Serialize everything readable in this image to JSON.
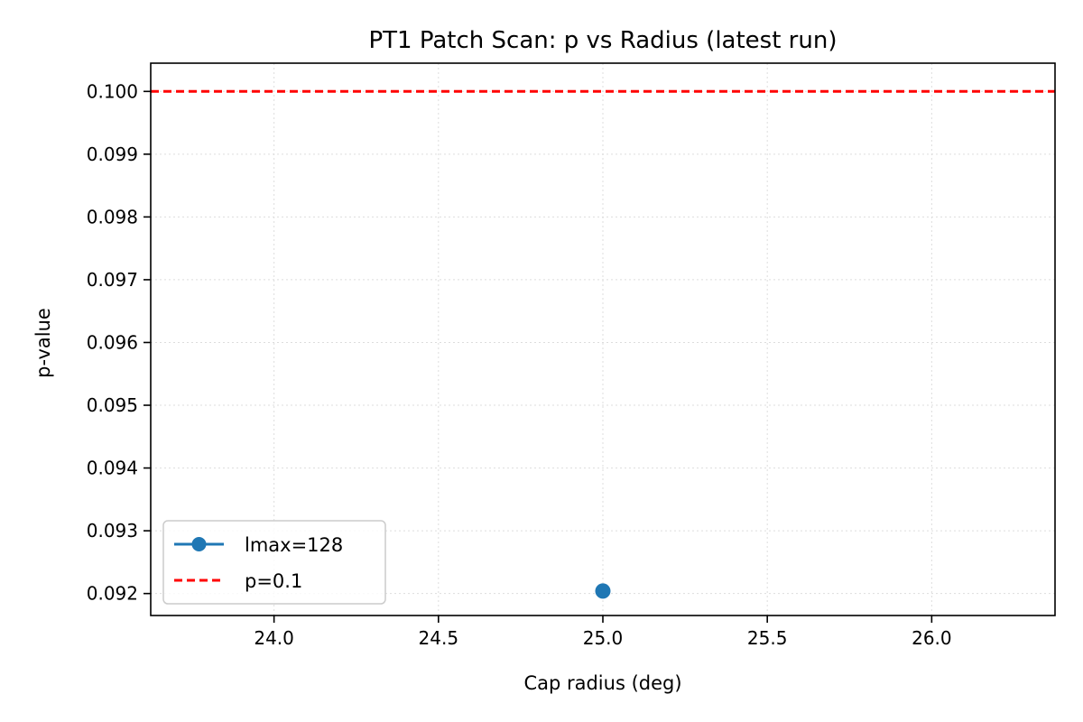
{
  "chart_data": {
    "type": "scatter",
    "title": "PT1 Patch Scan: p vs Radius (latest run)",
    "xlabel": "Cap radius (deg)",
    "ylabel": "p-value",
    "xlim": [
      23.625,
      26.375
    ],
    "ylim": [
      0.09165,
      0.10045
    ],
    "xticks": [
      24.0,
      24.5,
      25.0,
      25.5,
      26.0
    ],
    "xtick_labels": [
      "24.0",
      "24.5",
      "25.0",
      "25.5",
      "26.0"
    ],
    "yticks": [
      0.092,
      0.093,
      0.094,
      0.095,
      0.096,
      0.097,
      0.098,
      0.099,
      0.1
    ],
    "ytick_labels": [
      "0.092",
      "0.093",
      "0.094",
      "0.095",
      "0.096",
      "0.097",
      "0.098",
      "0.099",
      "0.100"
    ],
    "grid": true,
    "legend_position": "lower-left",
    "series": [
      {
        "name": "lmax=128",
        "color": "#1f77b4",
        "marker": "circle",
        "x": [
          25.0
        ],
        "y": [
          0.09204
        ]
      }
    ],
    "reference_lines": [
      {
        "name": "p=0.1",
        "orientation": "horizontal",
        "value": 0.1,
        "color": "#ff0000",
        "style": "dashed"
      }
    ]
  }
}
